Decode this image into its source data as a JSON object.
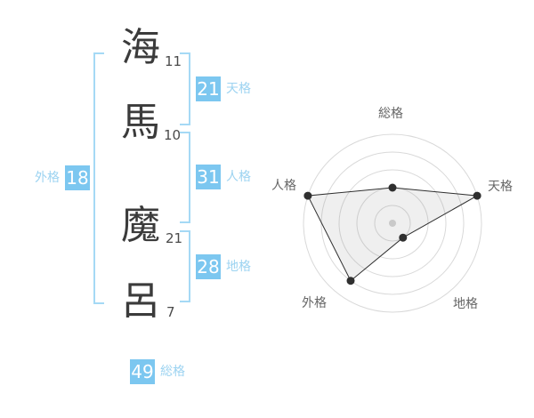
{
  "colors": {
    "box_blue": "#7cc7f0",
    "bracket_blue": "#a5d9f5",
    "label_blue": "#9cd3f1",
    "kanji_dark": "#3b3b3b",
    "stroke_number_gray": "#4a4a4a",
    "radar_label_gray": "#666666",
    "radar_ring_gray": "#d9d9d9",
    "radar_line_dark": "#2f2f2f",
    "radar_center_dot": "#c9c9c9"
  },
  "name": {
    "characters": [
      {
        "char": "海",
        "strokes": "11"
      },
      {
        "char": "馬",
        "strokes": "10"
      },
      {
        "char": "魔",
        "strokes": "21"
      },
      {
        "char": "呂",
        "strokes": "7"
      }
    ]
  },
  "scores": {
    "tenkaku": {
      "value": "21",
      "label": "天格"
    },
    "jinkaku": {
      "value": "31",
      "label": "人格"
    },
    "chikaku": {
      "value": "28",
      "label": "地格"
    },
    "gaikaku": {
      "value": "18",
      "label": "外格"
    },
    "soukaku": {
      "value": "49",
      "label": "総格"
    }
  },
  "chart_data": {
    "type": "radar",
    "axes": [
      "総格",
      "天格",
      "地格",
      "外格",
      "人格"
    ],
    "values": [
      2,
      5,
      1,
      4,
      5
    ],
    "max": 5,
    "rings": 5,
    "grid": "circular",
    "legend": "none",
    "fill": "light-gray",
    "start_axis": "top-clockwise"
  }
}
